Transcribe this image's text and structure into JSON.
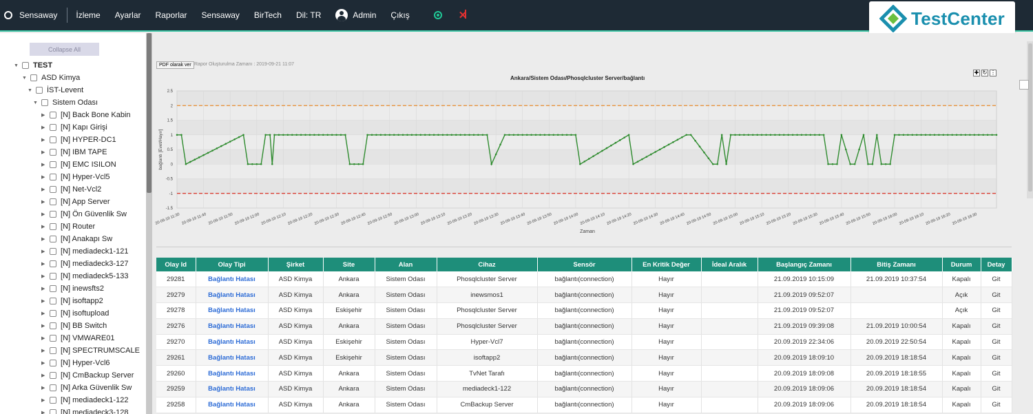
{
  "nav": {
    "brand": "Sensaway",
    "items": [
      "İzleme",
      "Ayarlar",
      "Raporlar",
      "Sensaway",
      "BirTech",
      "Dil: TR"
    ],
    "user": "Admin",
    "logout": "Çıkış",
    "logo_text": "TestCenter",
    "colors": {
      "bar": "#1e2a35",
      "accent": "#3cc5a4",
      "ok": "#20c997",
      "error": "#e03131"
    }
  },
  "sidebar": {
    "collapse_label": "Collapse All",
    "tree": [
      {
        "label": "TEST",
        "level": 0,
        "bold": true
      },
      {
        "label": "ASD Kimya",
        "level": 1
      },
      {
        "label": "İST-Levent",
        "level": 2
      },
      {
        "label": "Sistem Odası",
        "level": 3
      },
      {
        "label": "[N] Back Bone Kabin",
        "level": 4
      },
      {
        "label": "[N] Kapı Girişi",
        "level": 4
      },
      {
        "label": "[N] HYPER-DC1",
        "level": 4
      },
      {
        "label": "[N] IBM TAPE",
        "level": 4
      },
      {
        "label": "[N] EMC ISILON",
        "level": 4
      },
      {
        "label": "[N] Hyper-Vcl5",
        "level": 4
      },
      {
        "label": "[N] Net-Vcl2",
        "level": 4
      },
      {
        "label": "[N] App Server",
        "level": 4
      },
      {
        "label": "[N] Ön Güvenlik Sw",
        "level": 4
      },
      {
        "label": "[N] Router",
        "level": 4
      },
      {
        "label": "[N] Anakapı Sw",
        "level": 4
      },
      {
        "label": "[N] mediadeck1-121",
        "level": 4
      },
      {
        "label": "[N] mediadeck3-127",
        "level": 4
      },
      {
        "label": "[N] mediadeck5-133",
        "level": 4
      },
      {
        "label": "[N] inewsfts2",
        "level": 4
      },
      {
        "label": "[N] isoftapp2",
        "level": 4
      },
      {
        "label": "[N] isoftupload",
        "level": 4
      },
      {
        "label": "[N] BB Switch",
        "level": 4
      },
      {
        "label": "[N] VMWARE01",
        "level": 4
      },
      {
        "label": "[N] SPECTRUMSCALE",
        "level": 4
      },
      {
        "label": "[N] Hyper-Vcl6",
        "level": 4
      },
      {
        "label": "[N] CmBackup Server",
        "level": 4
      },
      {
        "label": "[N] Arka Güvenlik Sw",
        "level": 4
      },
      {
        "label": "[N] mediadeck1-122",
        "level": 4
      },
      {
        "label": "[N] mediadeck3-128",
        "level": 4
      }
    ]
  },
  "report": {
    "pdf_button": "PDF olarak ver",
    "generated": "Rapor Oluşturulma Zamanı : 2019-09-21 11:07"
  },
  "chart_data": {
    "type": "line",
    "title": "Ankara/Sistem Odası/Phosqlcluster Server/bağlantı",
    "xlabel": "Zaman",
    "ylabel": "bağlantı [Evet/Hayır]",
    "ylim": [
      -1.5,
      2.5
    ],
    "yticks": [
      "2.5",
      "2",
      "1.5",
      "1",
      "0.5",
      "0",
      "-0.5",
      "-1",
      "-1.5"
    ],
    "xticks": [
      "20-09-19 11:30",
      "20-09-19 11:40",
      "20-09-19 11:50",
      "20-09-19 12:00",
      "20-09-19 12:10",
      "20-09-19 12:20",
      "20-09-19 12:30",
      "20-09-19 12:40",
      "20-09-19 12:50",
      "20-09-19 13:00",
      "20-09-19 13:10",
      "20-09-19 13:20",
      "20-09-19 13:30",
      "20-09-19 13:40",
      "20-09-19 13:50",
      "20-09-19 14:00",
      "20-09-19 14:10",
      "20-09-19 14:20",
      "20-09-19 14:30",
      "20-09-19 14:40",
      "20-09-19 14:50",
      "20-09-19 15:00",
      "20-09-19 15:10",
      "20-09-19 15:20",
      "20-09-19 15:30",
      "20-09-19 15:40",
      "20-09-19 15:50",
      "20-09-19 16:00",
      "20-09-19 16:10",
      "20-09-19 16:20",
      "20-09-19 16:30"
    ],
    "xrange_minutes": [
      0,
      185
    ],
    "thresholds": [
      {
        "value": 2,
        "color": "#e8892b"
      },
      {
        "value": -1,
        "color": "#d93025"
      }
    ],
    "grid": true,
    "series": [
      {
        "color": "#2e8b2e",
        "x": [
          0,
          1,
          2,
          15,
          16,
          17,
          18,
          19,
          20,
          21,
          21.5,
          22,
          23,
          38,
          39,
          42,
          43,
          70,
          71,
          74,
          75,
          90,
          91,
          102,
          103,
          115,
          116,
          121,
          122,
          123,
          124,
          125,
          146,
          147,
          149,
          150,
          152,
          153,
          155,
          156,
          157,
          158,
          159,
          161,
          162,
          174,
          175,
          185
        ],
        "values": [
          1,
          1,
          0,
          1,
          0,
          0,
          0,
          0,
          1,
          1,
          0,
          1,
          1,
          1,
          0,
          0,
          1,
          1,
          0,
          1,
          1,
          1,
          0,
          1,
          0,
          1,
          1,
          0,
          0,
          1,
          0,
          1,
          1,
          0,
          0,
          1,
          0,
          0,
          1,
          0,
          0,
          1,
          0,
          0,
          1,
          1,
          1,
          1
        ]
      }
    ]
  },
  "table": {
    "columns": [
      "Olay Id",
      "Olay Tipi",
      "Şirket",
      "Site",
      "Alan",
      "Cihaz",
      "Sensör",
      "En Kritik Değer",
      "İdeal Aralık",
      "Başlangıç Zamanı",
      "Bitiş Zamanı",
      "Durum",
      "Detay"
    ],
    "rows": [
      [
        "29281",
        "Bağlantı Hatası",
        "ASD Kimya",
        "Ankara",
        "Sistem Odası",
        "Phosqlcluster Server",
        "bağlantı(connection)",
        "Hayır",
        "",
        "21.09.2019 10:15:09",
        "21.09.2019 10:37:54",
        "Kapalı",
        "Git"
      ],
      [
        "29279",
        "Bağlantı Hatası",
        "ASD Kimya",
        "Ankara",
        "Sistem Odası",
        "inewsmos1",
        "bağlantı(connection)",
        "Hayır",
        "",
        "21.09.2019 09:52:07",
        "",
        "Açık",
        "Git"
      ],
      [
        "29278",
        "Bağlantı Hatası",
        "ASD Kimya",
        "Eskişehir",
        "Sistem Odası",
        "Phosqlcluster Server",
        "bağlantı(connection)",
        "Hayır",
        "",
        "21.09.2019 09:52:07",
        "",
        "Açık",
        "Git"
      ],
      [
        "29276",
        "Bağlantı Hatası",
        "ASD Kimya",
        "Ankara",
        "Sistem Odası",
        "Phosqlcluster Server",
        "bağlantı(connection)",
        "Hayır",
        "",
        "21.09.2019 09:39:08",
        "21.09.2019 10:00:54",
        "Kapalı",
        "Git"
      ],
      [
        "29270",
        "Bağlantı Hatası",
        "ASD Kimya",
        "Eskişehir",
        "Sistem Odası",
        "Hyper-Vcl7",
        "bağlantı(connection)",
        "Hayır",
        "",
        "20.09.2019 22:34:06",
        "20.09.2019 22:50:54",
        "Kapalı",
        "Git"
      ],
      [
        "29261",
        "Bağlantı Hatası",
        "ASD Kimya",
        "Eskişehir",
        "Sistem Odası",
        "isoftapp2",
        "bağlantı(connection)",
        "Hayır",
        "",
        "20.09.2019 18:09:10",
        "20.09.2019 18:18:54",
        "Kapalı",
        "Git"
      ],
      [
        "29260",
        "Bağlantı Hatası",
        "ASD Kimya",
        "Ankara",
        "Sistem Odası",
        "TvNet Tarafı",
        "bağlantı(connection)",
        "Hayır",
        "",
        "20.09.2019 18:09:08",
        "20.09.2019 18:18:55",
        "Kapalı",
        "Git"
      ],
      [
        "29259",
        "Bağlantı Hatası",
        "ASD Kimya",
        "Ankara",
        "Sistem Odası",
        "mediadeck1-122",
        "bağlantı(connection)",
        "Hayır",
        "",
        "20.09.2019 18:09:06",
        "20.09.2019 18:18:54",
        "Kapalı",
        "Git"
      ],
      [
        "29258",
        "Bağlantı Hatası",
        "ASD Kimya",
        "Ankara",
        "Sistem Odası",
        "CmBackup Server",
        "bağlantı(connection)",
        "Hayır",
        "",
        "20.09.2019 18:09:06",
        "20.09.2019 18:18:54",
        "Kapalı",
        "Git"
      ]
    ]
  }
}
